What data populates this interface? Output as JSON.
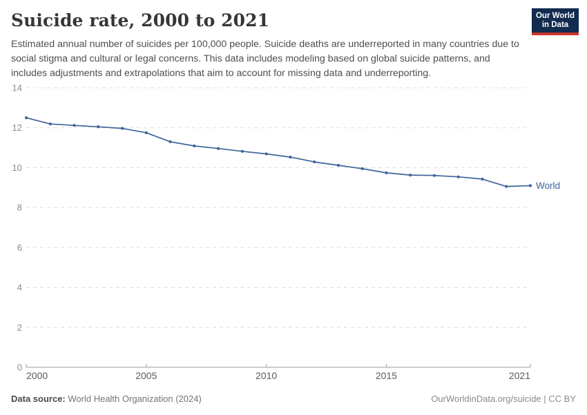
{
  "header": {
    "title": "Suicide rate, 2000 to 2021",
    "subtitle": "Estimated annual number of suicides per 100,000 people. Suicide deaths are underreported in many countries due to social stigma and cultural or legal concerns. This data includes modeling based on global suicide patterns, and includes adjustments and extrapolations that aim to account for missing data and underreporting.",
    "logo": {
      "line1": "Our World",
      "line2": "in Data",
      "bg_color": "#122b4e",
      "bar_color": "#cf352e",
      "text_color": "#ffffff"
    }
  },
  "chart_data": {
    "type": "line",
    "title": "Suicide rate, 2000 to 2021",
    "xlabel": "",
    "ylabel": "",
    "xlim": [
      2000,
      2021
    ],
    "ylim": [
      0,
      14
    ],
    "yticks": [
      0,
      2,
      4,
      6,
      8,
      10,
      12,
      14
    ],
    "xticks": [
      2000,
      2005,
      2010,
      2015,
      2021
    ],
    "grid": "horizontal-dashed",
    "legend_position": "end-of-line-label",
    "series": [
      {
        "name": "World",
        "color": "#3d6399",
        "x": [
          2000,
          2001,
          2002,
          2003,
          2004,
          2005,
          2006,
          2007,
          2008,
          2009,
          2010,
          2011,
          2012,
          2013,
          2014,
          2015,
          2016,
          2017,
          2018,
          2019,
          2020,
          2021
        ],
        "values": [
          12.5,
          12.19,
          12.12,
          12.05,
          11.97,
          11.75,
          11.3,
          11.09,
          10.96,
          10.82,
          10.69,
          10.53,
          10.29,
          10.12,
          9.95,
          9.74,
          9.63,
          9.61,
          9.54,
          9.43,
          9.06,
          9.1
        ]
      }
    ]
  },
  "footer": {
    "source_label": "Data source:",
    "source_value": "World Health Organization (2024)",
    "attribution": "OurWorldinData.org/suicide | CC BY"
  }
}
